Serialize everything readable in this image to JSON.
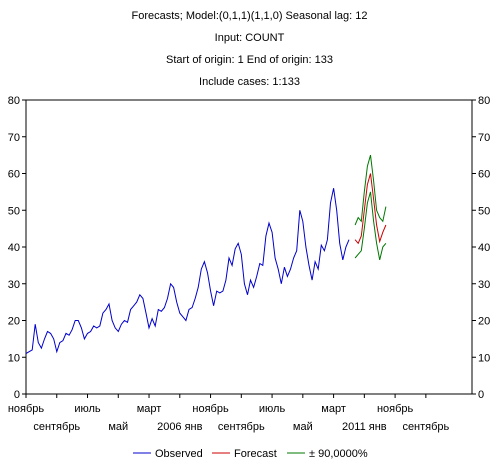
{
  "header": {
    "title": "Forecasts; Model:(0,1,1)(1,1,0) Seasonal lag: 12",
    "input": "Input: COUNT",
    "origin": "Start of origin: 1        End of origin: 133",
    "include": "Include cases: 1:133"
  },
  "chart_data": {
    "type": "line",
    "ylim": [
      0,
      80
    ],
    "yticks": [
      0,
      10,
      20,
      30,
      40,
      50,
      60,
      70,
      80
    ],
    "xlim": [
      0,
      145
    ],
    "xticks_top": [
      {
        "pos": 0,
        "label": "ноябрь"
      },
      {
        "pos": 20,
        "label": "июль"
      },
      {
        "pos": 40,
        "label": "март"
      },
      {
        "pos": 60,
        "label": "ноябрь"
      },
      {
        "pos": 80,
        "label": "июль"
      },
      {
        "pos": 100,
        "label": "март"
      },
      {
        "pos": 120,
        "label": "ноябрь"
      }
    ],
    "xticks_bottom": [
      {
        "pos": 10,
        "label": "сентябрь"
      },
      {
        "pos": 30,
        "label": "май"
      },
      {
        "pos": 50,
        "label": "2006 янв"
      },
      {
        "pos": 70,
        "label": "сентябрь"
      },
      {
        "pos": 90,
        "label": "май"
      },
      {
        "pos": 110,
        "label": "2011 янв"
      },
      {
        "pos": 130,
        "label": "сентябрь"
      }
    ],
    "legend": "bottom-center",
    "series": [
      {
        "name": "Observed",
        "color": "#0000cc",
        "x_start": 0,
        "values": [
          11,
          11.5,
          12,
          19,
          14,
          12.5,
          15,
          17,
          16.5,
          15,
          11.5,
          14,
          14.5,
          16.5,
          16,
          17.5,
          20,
          20,
          18,
          15,
          16.5,
          17,
          18.5,
          18,
          18.5,
          22,
          23,
          24.5,
          20,
          18,
          17,
          19,
          20,
          19.5,
          23,
          24,
          25,
          27,
          26,
          22,
          18,
          20.5,
          18.5,
          23,
          22.5,
          23.5,
          26,
          30,
          29,
          25,
          22,
          21,
          20,
          23,
          23.5,
          26,
          29,
          34,
          36,
          33,
          28,
          24,
          28,
          27.5,
          28,
          31,
          37,
          35,
          39.5,
          41,
          38,
          30,
          27,
          31,
          29,
          32,
          35.5,
          35,
          43,
          46.5,
          44,
          37,
          34,
          30,
          34.5,
          32,
          34,
          37,
          39,
          50,
          47,
          40,
          35,
          31,
          36,
          34,
          40.5,
          39,
          42,
          52,
          56,
          50,
          41,
          36.5,
          40,
          42
        ]
      },
      {
        "name": "Forecast",
        "color": "#cc0000",
        "x_start": 107,
        "values": [
          42,
          41,
          43,
          50,
          57,
          60,
          53,
          46,
          41.5,
          44,
          46
        ]
      },
      {
        "name": "± 90,0000%",
        "color": "#007700",
        "x_start": 107,
        "upper": [
          46,
          48,
          47,
          55,
          62,
          65,
          58,
          50,
          48,
          47,
          51
        ],
        "lower": [
          37,
          38,
          39,
          45,
          52,
          55,
          47,
          41,
          36.5,
          40,
          41
        ]
      }
    ]
  }
}
